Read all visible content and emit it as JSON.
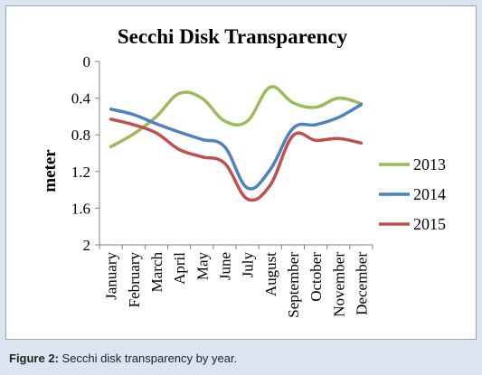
{
  "caption": {
    "label": "Figure 2:",
    "text": " Secchi disk transparency by year."
  },
  "chart_data": {
    "type": "line",
    "title": "Secchi Disk Transparency",
    "xlabel": "",
    "ylabel": "meter",
    "ylim": [
      0,
      2
    ],
    "y_inverted": true,
    "yticks": [
      0,
      0.4,
      0.8,
      1.2,
      1.6,
      2
    ],
    "ytick_labels": [
      "0",
      "0.4",
      "0.8",
      "1.2",
      "1.6",
      "2"
    ],
    "grid": false,
    "legend": "right",
    "categories": [
      "January",
      "February",
      "March",
      "April",
      "May",
      "June",
      "July",
      "August",
      "September",
      "October",
      "November",
      "December"
    ],
    "series": [
      {
        "name": "2013",
        "color": "#9bbb59",
        "values": [
          0.93,
          0.79,
          0.6,
          0.35,
          0.4,
          0.65,
          0.65,
          0.28,
          0.45,
          0.5,
          0.4,
          0.46
        ]
      },
      {
        "name": "2014",
        "color": "#4f81bd",
        "values": [
          0.52,
          0.58,
          0.68,
          0.77,
          0.85,
          0.93,
          1.38,
          1.18,
          0.73,
          0.69,
          0.61,
          0.47
        ]
      },
      {
        "name": "2015",
        "color": "#c0504d",
        "values": [
          0.63,
          0.69,
          0.78,
          0.96,
          1.04,
          1.11,
          1.5,
          1.35,
          0.81,
          0.86,
          0.84,
          0.89
        ]
      }
    ]
  }
}
